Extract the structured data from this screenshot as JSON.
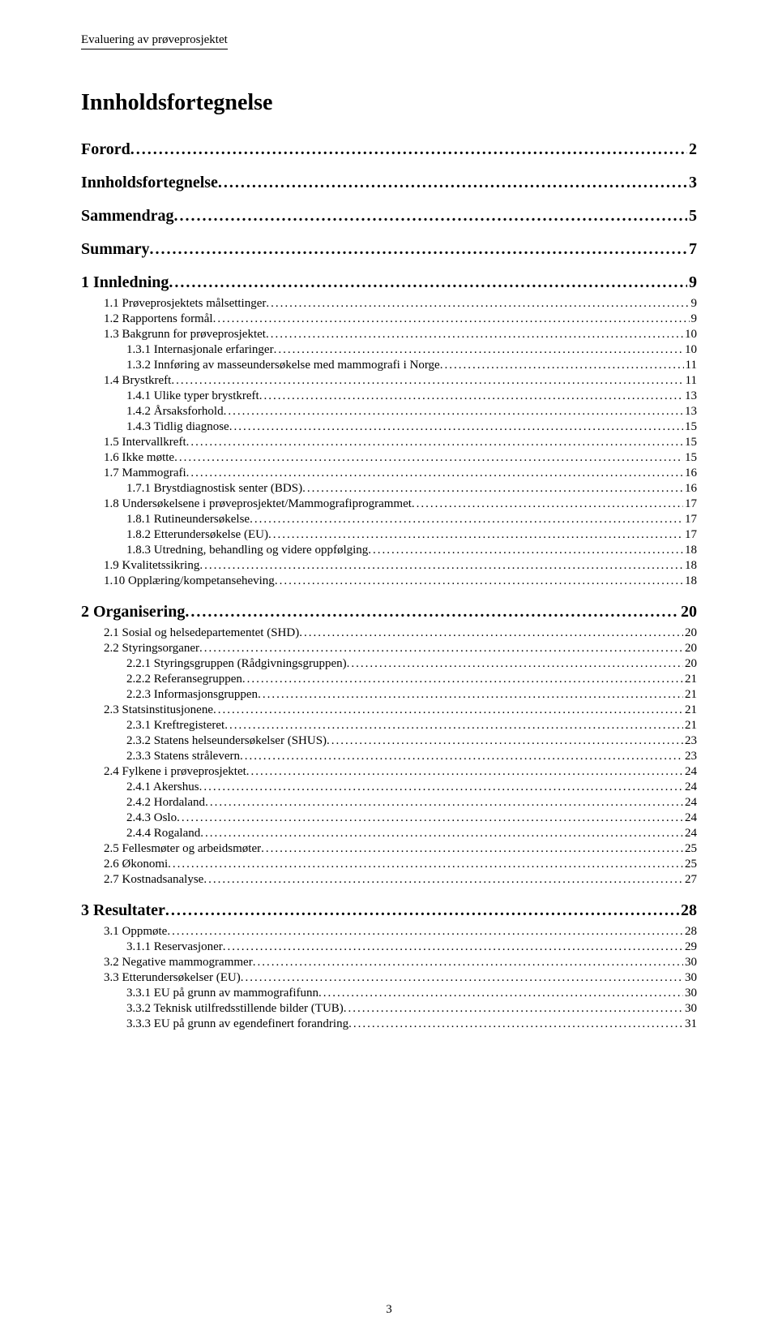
{
  "header": "Evaluering av prøveprosjektet",
  "title": "Innholdsfortegnelse",
  "footerPage": "3",
  "toc": [
    {
      "level": 1,
      "label": "Forord",
      "page": "2"
    },
    {
      "level": 1,
      "label": "Innholdsfortegnelse",
      "page": "3"
    },
    {
      "level": 1,
      "label": "Sammendrag",
      "page": "5"
    },
    {
      "level": 1,
      "label": "Summary",
      "page": "7"
    },
    {
      "level": 1,
      "label": "1   Innledning",
      "page": "9"
    },
    {
      "level": 2,
      "label": "1.1   Prøveprosjektets målsettinger",
      "page": "9"
    },
    {
      "level": 2,
      "label": "1.2   Rapportens formål",
      "page": "9"
    },
    {
      "level": 2,
      "label": "1.3   Bakgrunn for prøveprosjektet",
      "page": "10"
    },
    {
      "level": 3,
      "label": "1.3.1   Internasjonale erfaringer",
      "page": "10"
    },
    {
      "level": 3,
      "label": "1.3.2   Innføring av masseundersøkelse med mammografi i Norge",
      "page": "11"
    },
    {
      "level": 2,
      "label": "1.4   Brystkreft",
      "page": "11"
    },
    {
      "level": 3,
      "label": "1.4.1   Ulike typer brystkreft",
      "page": "13"
    },
    {
      "level": 3,
      "label": "1.4.2   Årsaksforhold",
      "page": "13"
    },
    {
      "level": 3,
      "label": "1.4.3   Tidlig diagnose",
      "page": "15"
    },
    {
      "level": 2,
      "label": "1.5   Intervallkreft",
      "page": "15"
    },
    {
      "level": 2,
      "label": "1.6   Ikke møtte",
      "page": "15"
    },
    {
      "level": 2,
      "label": "1.7   Mammografi",
      "page": "16"
    },
    {
      "level": 3,
      "label": "1.7.1   Brystdiagnostisk senter (BDS)",
      "page": "16"
    },
    {
      "level": 2,
      "label": "1.8   Undersøkelsene i prøveprosjektet/Mammografiprogrammet",
      "page": "17"
    },
    {
      "level": 3,
      "label": "1.8.1   Rutineundersøkelse",
      "page": "17"
    },
    {
      "level": 3,
      "label": "1.8.2   Etterundersøkelse (EU)",
      "page": "17"
    },
    {
      "level": 3,
      "label": "1.8.3   Utredning, behandling og videre oppfølging",
      "page": "18"
    },
    {
      "level": 2,
      "label": "1.9   Kvalitetssikring",
      "page": "18"
    },
    {
      "level": 2,
      "label": "1.10   Opplæring/kompetanseheving",
      "page": "18"
    },
    {
      "level": 1,
      "label": "2   Organisering",
      "page": "20"
    },
    {
      "level": 2,
      "label": "2.1   Sosial og helsedepartementet (SHD)",
      "page": "20"
    },
    {
      "level": 2,
      "label": "2.2   Styringsorganer",
      "page": "20"
    },
    {
      "level": 3,
      "label": "2.2.1   Styringsgruppen (Rådgivningsgruppen)",
      "page": "20"
    },
    {
      "level": 3,
      "label": "2.2.2   Referansegruppen",
      "page": "21"
    },
    {
      "level": 3,
      "label": "2.2.3   Informasjonsgruppen",
      "page": "21"
    },
    {
      "level": 2,
      "label": "2.3   Statsinstitusjonene",
      "page": "21"
    },
    {
      "level": 3,
      "label": "2.3.1   Kreftregisteret",
      "page": "21"
    },
    {
      "level": 3,
      "label": "2.3.2   Statens helseundersøkelser (SHUS)",
      "page": "23"
    },
    {
      "level": 3,
      "label": "2.3.3   Statens strålevern",
      "page": "23"
    },
    {
      "level": 2,
      "label": "2.4   Fylkene i prøveprosjektet",
      "page": "24"
    },
    {
      "level": 3,
      "label": "2.4.1   Akershus",
      "page": "24"
    },
    {
      "level": 3,
      "label": "2.4.2   Hordaland",
      "page": "24"
    },
    {
      "level": 3,
      "label": "2.4.3   Oslo",
      "page": "24"
    },
    {
      "level": 3,
      "label": "2.4.4   Rogaland",
      "page": "24"
    },
    {
      "level": 2,
      "label": "2.5   Fellesmøter og arbeidsmøter",
      "page": "25"
    },
    {
      "level": 2,
      "label": "2.6   Økonomi",
      "page": "25"
    },
    {
      "level": 2,
      "label": "2.7   Kostnadsanalyse",
      "page": "27"
    },
    {
      "level": 1,
      "label": "3   Resultater",
      "page": "28"
    },
    {
      "level": 2,
      "label": "3.1   Oppmøte",
      "page": "28"
    },
    {
      "level": 3,
      "label": "3.1.1   Reservasjoner",
      "page": "29"
    },
    {
      "level": 2,
      "label": "3.2   Negative mammogrammer",
      "page": "30"
    },
    {
      "level": 2,
      "label": "3.3   Etterundersøkelser (EU)",
      "page": "30"
    },
    {
      "level": 3,
      "label": "3.3.1   EU på grunn av mammografifunn",
      "page": "30"
    },
    {
      "level": 3,
      "label": "3.3.2   Teknisk utilfredsstillende bilder (TUB)",
      "page": "30"
    },
    {
      "level": 3,
      "label": "3.3.3   EU på grunn av egendefinert forandring",
      "page": "31"
    }
  ]
}
